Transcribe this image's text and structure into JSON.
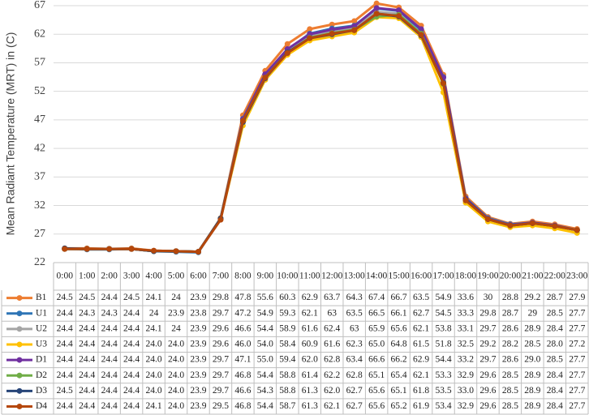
{
  "chart_data": {
    "type": "line",
    "y_label": "Mean Radiant Temperature (MRT) in (C)",
    "ylim": [
      22,
      67
    ],
    "yticks": [
      22,
      27,
      32,
      37,
      42,
      47,
      52,
      57,
      62,
      67
    ],
    "grid": true,
    "categories": [
      "0:00",
      "1:00",
      "2:00",
      "3:00",
      "4:00",
      "5:00",
      "6:00",
      "7:00",
      "8:00",
      "9:00",
      "10:00",
      "11:00",
      "12:00",
      "13:00",
      "14:00",
      "15:00",
      "16:00",
      "17:00",
      "18:00",
      "19:00",
      "20:00",
      "21:00",
      "22:00",
      "23:00"
    ],
    "series": [
      {
        "name": "B1",
        "color": "#ed7d31",
        "values": [
          24.5,
          24.5,
          24.4,
          24.5,
          24.1,
          24,
          23.9,
          29.8,
          47.8,
          55.6,
          60.3,
          62.9,
          63.7,
          64.3,
          67.4,
          66.7,
          63.5,
          54.9,
          33.6,
          30,
          28.8,
          29.2,
          28.7,
          27.9
        ],
        "value_labels": [
          "24.5",
          "24.5",
          "24.4",
          "24.5",
          "24.1",
          "24",
          "23.9",
          "29.8",
          "47.8",
          "55.6",
          "60.3",
          "62.9",
          "63.7",
          "64.3",
          "67.4",
          "66.7",
          "63.5",
          "54.9",
          "33.6",
          "30",
          "28.8",
          "29.2",
          "28.7",
          "27.9"
        ]
      },
      {
        "name": "U1",
        "color": "#2e75b6",
        "values": [
          24.4,
          24.3,
          24.3,
          24.4,
          24,
          23.9,
          23.8,
          29.7,
          47.2,
          54.9,
          59.3,
          62.1,
          63,
          63.5,
          66.5,
          66.1,
          62.7,
          54.5,
          33.3,
          29.8,
          28.7,
          29,
          28.5,
          27.7
        ],
        "value_labels": [
          "24.4",
          "24.3",
          "24.3",
          "24.4",
          "24",
          "23.9",
          "23.8",
          "29.7",
          "47.2",
          "54.9",
          "59.3",
          "62.1",
          "63",
          "63.5",
          "66.5",
          "66.1",
          "62.7",
          "54.5",
          "33.3",
          "29.8",
          "28.7",
          "29",
          "28.5",
          "27.7"
        ]
      },
      {
        "name": "U2",
        "color": "#a5a5a5",
        "values": [
          24.4,
          24.4,
          24.4,
          24.4,
          24.1,
          24,
          23.9,
          29.6,
          46.6,
          54.4,
          58.9,
          61.6,
          62.4,
          63,
          65.9,
          65.6,
          62.1,
          53.8,
          33.1,
          29.7,
          28.6,
          28.9,
          28.4,
          27.7
        ],
        "value_labels": [
          "24.4",
          "24.4",
          "24.4",
          "24.4",
          "24.1",
          "24",
          "23.9",
          "29.6",
          "46.6",
          "54.4",
          "58.9",
          "61.6",
          "62.4",
          "63",
          "65.9",
          "65.6",
          "62.1",
          "53.8",
          "33.1",
          "29.7",
          "28.6",
          "28.9",
          "28.4",
          "27.7"
        ]
      },
      {
        "name": "U3",
        "color": "#ffc000",
        "values": [
          24.4,
          24.4,
          24.4,
          24.4,
          24.0,
          24.0,
          23.9,
          29.6,
          46.0,
          54.0,
          58.4,
          60.9,
          61.6,
          62.3,
          65.0,
          64.8,
          61.5,
          51.8,
          32.5,
          29.2,
          28.2,
          28.5,
          28.0,
          27.2
        ],
        "value_labels": [
          "24.4",
          "24.4",
          "24.4",
          "24.4",
          "24.0",
          "24.0",
          "23.9",
          "29.6",
          "46.0",
          "54.0",
          "58.4",
          "60.9",
          "61.6",
          "62.3",
          "65.0",
          "64.8",
          "61.5",
          "51.8",
          "32.5",
          "29.2",
          "28.2",
          "28.5",
          "28.0",
          "27.2"
        ]
      },
      {
        "name": "D1",
        "color": "#7030a0",
        "values": [
          24.4,
          24.4,
          24.4,
          24.4,
          24.0,
          24.0,
          23.9,
          29.7,
          47.1,
          55.0,
          59.4,
          62.0,
          62.8,
          63.4,
          66.6,
          66.2,
          62.9,
          54.4,
          33.2,
          29.7,
          28.6,
          29.0,
          28.5,
          27.7
        ],
        "value_labels": [
          "24.4",
          "24.4",
          "24.4",
          "24.4",
          "24.0",
          "24.0",
          "23.9",
          "29.7",
          "47.1",
          "55.0",
          "59.4",
          "62.0",
          "62.8",
          "63.4",
          "66.6",
          "66.2",
          "62.9",
          "54.4",
          "33.2",
          "29.7",
          "28.6",
          "29.0",
          "28.5",
          "27.7"
        ]
      },
      {
        "name": "D2",
        "color": "#70ad47",
        "values": [
          24.4,
          24.4,
          24.4,
          24.4,
          24.0,
          24.0,
          23.9,
          29.7,
          46.8,
          54.4,
          58.8,
          61.4,
          62.2,
          62.8,
          65.1,
          65.4,
          62.1,
          53.3,
          32.9,
          29.6,
          28.5,
          28.9,
          28.4,
          27.7
        ],
        "value_labels": [
          "24.4",
          "24.4",
          "24.4",
          "24.4",
          "24.0",
          "24.0",
          "23.9",
          "29.7",
          "46.8",
          "54.4",
          "58.8",
          "61.4",
          "62.2",
          "62.8",
          "65.1",
          "65.4",
          "62.1",
          "53.3",
          "32.9",
          "29.6",
          "28.5",
          "28.9",
          "28.4",
          "27.7"
        ]
      },
      {
        "name": "D3",
        "color": "#264478",
        "values": [
          24.5,
          24.4,
          24.4,
          24.4,
          24.0,
          24.0,
          23.9,
          29.7,
          46.6,
          54.3,
          58.8,
          61.3,
          62.0,
          62.7,
          65.6,
          65.1,
          61.8,
          53.5,
          33.0,
          29.6,
          28.5,
          28.9,
          28.4,
          27.7
        ],
        "value_labels": [
          "24.5",
          "24.4",
          "24.4",
          "24.4",
          "24.0",
          "24.0",
          "23.9",
          "29.7",
          "46.6",
          "54.3",
          "58.8",
          "61.3",
          "62.0",
          "62.7",
          "65.6",
          "65.1",
          "61.8",
          "53.5",
          "33.0",
          "29.6",
          "28.5",
          "28.9",
          "28.4",
          "27.7"
        ]
      },
      {
        "name": "D4",
        "color": "#b5470b",
        "values": [
          24.4,
          24.4,
          24.4,
          24.4,
          24.1,
          24.0,
          23.9,
          29.5,
          46.8,
          54.4,
          58.7,
          61.3,
          62.1,
          62.7,
          65.6,
          65.2,
          61.9,
          53.4,
          32.9,
          29.6,
          28.5,
          28.9,
          28.4,
          27.7
        ],
        "value_labels": [
          "24.4",
          "24.4",
          "24.4",
          "24.4",
          "24.1",
          "24.0",
          "23.9",
          "29.5",
          "46.8",
          "54.4",
          "58.7",
          "61.3",
          "62.1",
          "62.7",
          "65.6",
          "65.2",
          "61.9",
          "53.4",
          "32.9",
          "29.6",
          "28.5",
          "28.9",
          "28.4",
          "27.7"
        ]
      }
    ]
  }
}
